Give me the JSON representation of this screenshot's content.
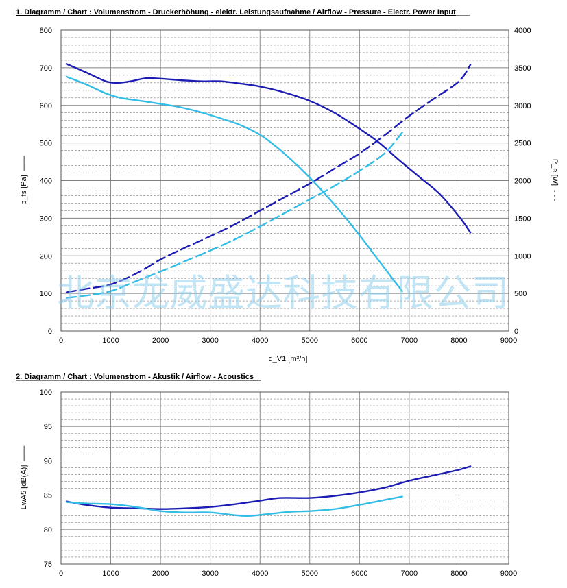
{
  "watermark": "北京龙威盛达科技有限公司",
  "colors": {
    "dark_blue": "#1c1cb4",
    "light_blue": "#33bde6",
    "grid": "#808080",
    "watermark": "#8fd0ee"
  },
  "chart_data": [
    {
      "type": "line",
      "title": "1. Diagramm / Chart :   Volumenstrom - Druckerhöhung - elektr. Leistungsaufnahme / Airflow - Pressure - Electr. Power Input",
      "xlabel": "q_V1 [m³/h]",
      "ylabel": "p_fs [Pa]",
      "ylabel_legend": "——",
      "y2label": "P_e [W]",
      "y2label_legend": "- - -",
      "xlim": [
        0,
        9000
      ],
      "ylim": [
        0,
        800
      ],
      "y2lim": [
        0,
        4000
      ],
      "xticks": [
        "0",
        "1000",
        "2000",
        "3000",
        "4000",
        "5000",
        "6000",
        "7000",
        "8000",
        "9000"
      ],
      "yticks": [
        "0",
        "100",
        "200",
        "300",
        "400",
        "500",
        "600",
        "700",
        "800"
      ],
      "y2ticks": [
        "0",
        "500",
        "1000",
        "1500",
        "2000",
        "2500",
        "3000",
        "3500",
        "4000"
      ],
      "grid": true,
      "series": [
        {
          "axis": "y",
          "style": "solid",
          "color": "#1c1cb4",
          "points": [
            [
              110,
              710
            ],
            [
              500,
              688
            ],
            [
              900,
              664
            ],
            [
              1150,
              660
            ],
            [
              1400,
              664
            ],
            [
              1700,
              672
            ],
            [
              2000,
              671
            ],
            [
              2400,
              667
            ],
            [
              2800,
              664
            ],
            [
              3200,
              664
            ],
            [
              3600,
              658
            ],
            [
              4000,
              650
            ],
            [
              4500,
              634
            ],
            [
              5000,
              612
            ],
            [
              5500,
              580
            ],
            [
              6000,
              538
            ],
            [
              6400,
              500
            ],
            [
              6800,
              454
            ],
            [
              7200,
              410
            ],
            [
              7600,
              366
            ],
            [
              8000,
              305
            ],
            [
              8230,
              262
            ]
          ]
        },
        {
          "axis": "y",
          "style": "solid",
          "color": "#33bde6",
          "points": [
            [
              110,
              676
            ],
            [
              500,
              656
            ],
            [
              900,
              632
            ],
            [
              1200,
              620
            ],
            [
              1600,
              612
            ],
            [
              2000,
              604
            ],
            [
              2400,
              595
            ],
            [
              2800,
              582
            ],
            [
              3200,
              566
            ],
            [
              3600,
              548
            ],
            [
              4000,
              522
            ],
            [
              4400,
              482
            ],
            [
              4800,
              434
            ],
            [
              5200,
              380
            ],
            [
              5600,
              320
            ],
            [
              6000,
              255
            ],
            [
              6400,
              185
            ],
            [
              6700,
              133
            ],
            [
              6860,
              106
            ]
          ]
        },
        {
          "axis": "y2",
          "style": "dashed",
          "color": "#1c1cb4",
          "points": [
            [
              110,
              515
            ],
            [
              500,
              560
            ],
            [
              1000,
              620
            ],
            [
              1500,
              760
            ],
            [
              2000,
              950
            ],
            [
              2500,
              1110
            ],
            [
              3000,
              1260
            ],
            [
              3500,
              1420
            ],
            [
              4000,
              1600
            ],
            [
              4500,
              1780
            ],
            [
              5000,
              1960
            ],
            [
              5500,
              2160
            ],
            [
              6000,
              2360
            ],
            [
              6500,
              2600
            ],
            [
              7000,
              2860
            ],
            [
              7500,
              3090
            ],
            [
              8000,
              3320
            ],
            [
              8230,
              3540
            ]
          ]
        },
        {
          "axis": "y2",
          "style": "dashed",
          "color": "#33bde6",
          "points": [
            [
              110,
              440
            ],
            [
              600,
              480
            ],
            [
              1000,
              530
            ],
            [
              1500,
              660
            ],
            [
              2000,
              790
            ],
            [
              2500,
              930
            ],
            [
              3000,
              1070
            ],
            [
              3500,
              1220
            ],
            [
              4000,
              1390
            ],
            [
              4500,
              1570
            ],
            [
              5000,
              1750
            ],
            [
              5500,
              1930
            ],
            [
              6000,
              2130
            ],
            [
              6500,
              2360
            ],
            [
              6860,
              2640
            ]
          ]
        }
      ]
    },
    {
      "type": "line",
      "title": "2. Diagramm / Chart :   Volumenstrom - Akustik / Airflow - Acoustics",
      "xlabel": "",
      "ylabel": "LwA5 [dB(A)]",
      "ylabel_legend": "——",
      "xlim": [
        0,
        9000
      ],
      "ylim": [
        75,
        100
      ],
      "xticks": [
        "0",
        "1000",
        "2000",
        "3000",
        "4000",
        "5000",
        "6000",
        "7000",
        "8000",
        "9000"
      ],
      "yticks": [
        "75",
        "80",
        "85",
        "90",
        "95",
        "100"
      ],
      "grid": true,
      "series": [
        {
          "style": "solid",
          "color": "#1c1cb4",
          "points": [
            [
              110,
              84.1
            ],
            [
              500,
              83.6
            ],
            [
              1000,
              83.2
            ],
            [
              1500,
              83.1
            ],
            [
              2000,
              83.0
            ],
            [
              2500,
              83.1
            ],
            [
              3000,
              83.3
            ],
            [
              3500,
              83.7
            ],
            [
              4000,
              84.2
            ],
            [
              4400,
              84.6
            ],
            [
              5000,
              84.6
            ],
            [
              5500,
              84.9
            ],
            [
              6000,
              85.4
            ],
            [
              6500,
              86.1
            ],
            [
              7000,
              87.1
            ],
            [
              7500,
              87.9
            ],
            [
              8000,
              88.7
            ],
            [
              8230,
              89.2
            ]
          ]
        },
        {
          "style": "solid",
          "color": "#33bde6",
          "points": [
            [
              110,
              84.0
            ],
            [
              500,
              83.8
            ],
            [
              1000,
              83.7
            ],
            [
              1500,
              83.3
            ],
            [
              2000,
              82.7
            ],
            [
              2500,
              82.5
            ],
            [
              3000,
              82.5
            ],
            [
              3500,
              82.1
            ],
            [
              3800,
              82.0
            ],
            [
              4200,
              82.3
            ],
            [
              4600,
              82.6
            ],
            [
              5000,
              82.7
            ],
            [
              5500,
              83.0
            ],
            [
              6000,
              83.6
            ],
            [
              6500,
              84.3
            ],
            [
              6860,
              84.8
            ]
          ]
        }
      ]
    }
  ]
}
